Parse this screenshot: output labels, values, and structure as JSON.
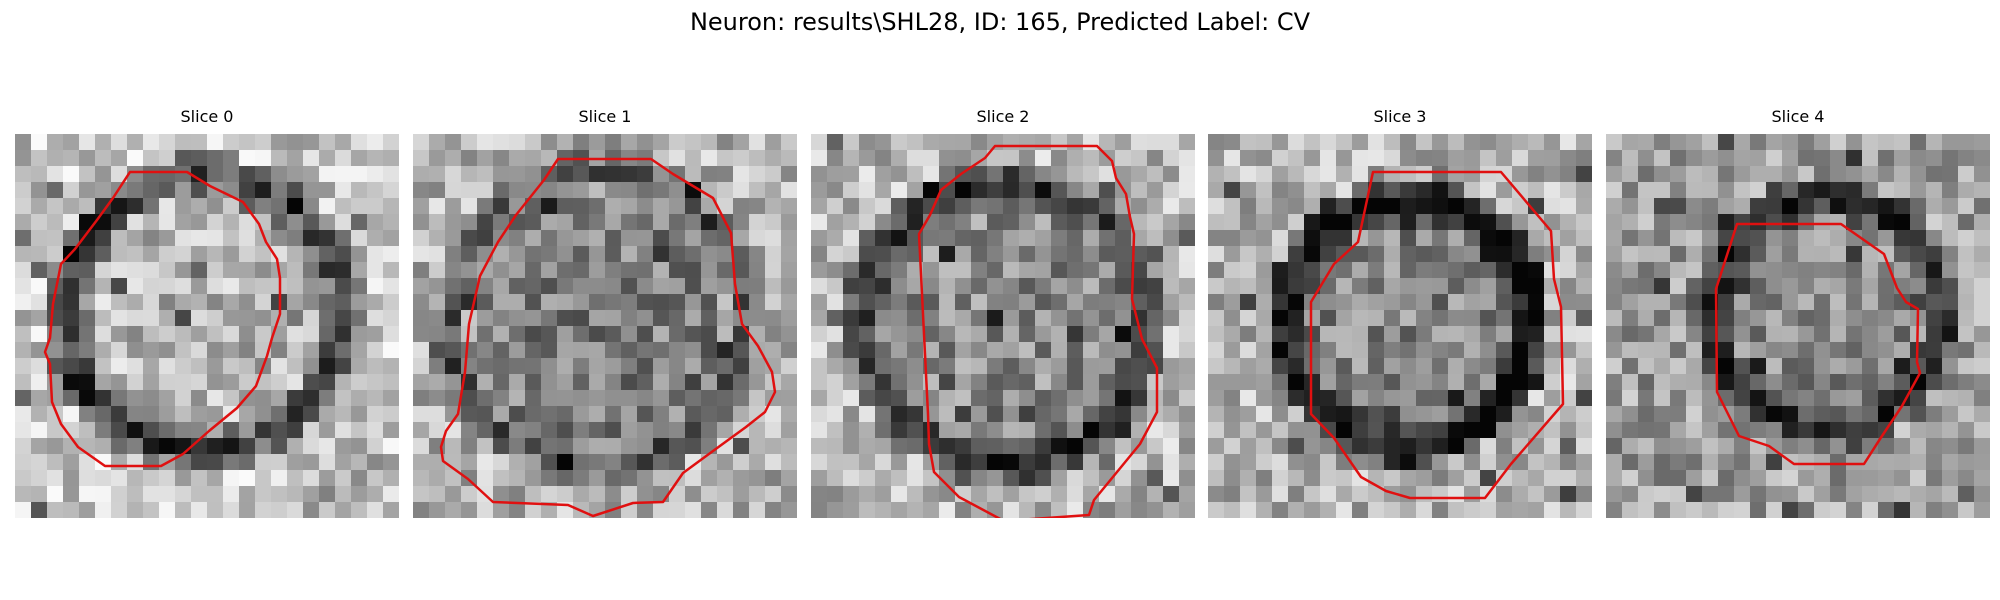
{
  "figure": {
    "title": "Neuron: results\\SHL28, ID: 165, Predicted Label: CV"
  },
  "outline_color": "#e01010",
  "colormap": "gray",
  "panels": [
    {
      "label": "Slice 0",
      "image": "grayscale-microscopy-slice",
      "overlay": "red-cell-contour"
    },
    {
      "label": "Slice 1",
      "image": "grayscale-microscopy-slice",
      "overlay": "red-cell-contour"
    },
    {
      "label": "Slice 2",
      "image": "grayscale-microscopy-slice",
      "overlay": "red-cell-contour"
    },
    {
      "label": "Slice 3",
      "image": "grayscale-microscopy-slice",
      "overlay": "red-cell-contour"
    },
    {
      "label": "Slice 4",
      "image": "grayscale-microscopy-slice",
      "overlay": "red-cell-contour"
    }
  ]
}
